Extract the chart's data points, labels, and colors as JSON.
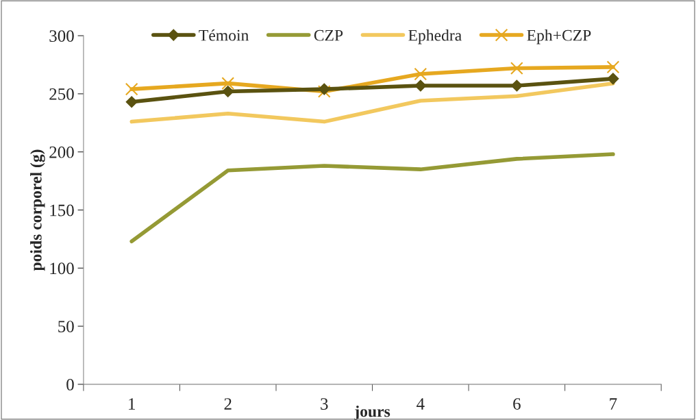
{
  "chart_data": {
    "type": "line",
    "xlabel": "jours",
    "ylabel": "poids corporel (g)",
    "categories": [
      "1",
      "2",
      "3",
      "4",
      "6",
      "7"
    ],
    "series": [
      {
        "name": "Témoin",
        "color": "#5a5210",
        "marker": "diamond",
        "values": [
          243,
          252,
          254,
          257,
          257,
          263
        ]
      },
      {
        "name": "CZP",
        "color": "#959a35",
        "marker": "none",
        "values": [
          123,
          184,
          188,
          185,
          194,
          198
        ]
      },
      {
        "name": "Ephedra",
        "color": "#f2c85e",
        "marker": "none",
        "values": [
          226,
          233,
          226,
          244,
          248,
          259
        ]
      },
      {
        "name": "Eph+CZP",
        "color": "#e6a820",
        "marker": "cross",
        "values": [
          254,
          259,
          252,
          267,
          272,
          273
        ]
      }
    ],
    "ylim": [
      0,
      300
    ],
    "yticks": [
      0,
      50,
      100,
      150,
      200,
      250,
      300
    ],
    "grid": false,
    "legend": "top",
    "line_style": "solid"
  }
}
